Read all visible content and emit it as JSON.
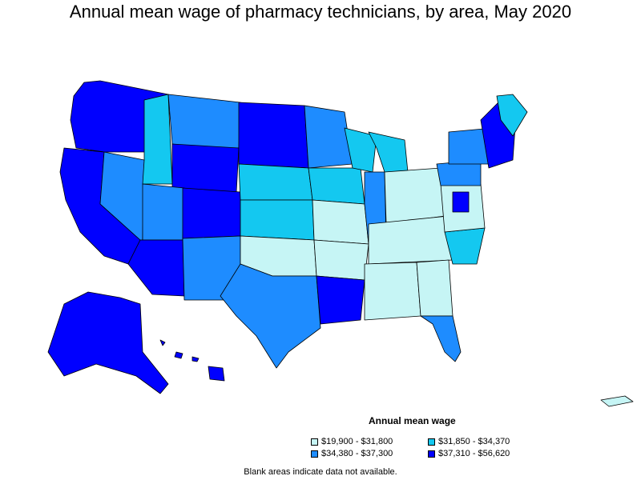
{
  "title": "Annual mean wage of pharmacy technicians, by area, May 2020",
  "legend": {
    "title": "Annual mean wage",
    "items": [
      {
        "label": "$19,900 - $31,800",
        "color": "#c6f5f5"
      },
      {
        "label": "$31,850 - $34,370",
        "color": "#14c8f0"
      },
      {
        "label": "$34,380 - $37,300",
        "color": "#1e8cff"
      },
      {
        "label": "$37,310 - $56,620",
        "color": "#0000ff"
      }
    ]
  },
  "footnote": "Blank areas indicate data not available.",
  "colors": {
    "q1": "#c6f5f5",
    "q2": "#14c8f0",
    "q3": "#1e8cff",
    "q4": "#0000ff"
  }
}
